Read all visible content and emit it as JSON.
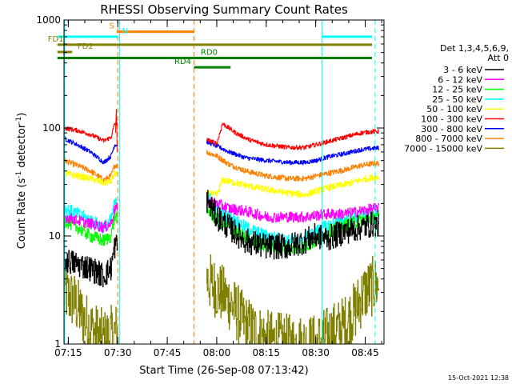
{
  "chart_data": {
    "type": "line",
    "title": "RHESSI Observing Summary Count Rates",
    "xlabel": "Start Time (26-Sep-08 07:13:42)",
    "ylabel_main": "Count Rate (s",
    "ylabel_sup1": "-1",
    "ylabel_mid": " detector",
    "ylabel_sup2": "-1",
    "ylabel_end": ")",
    "yscale": "log",
    "xlim_min": [
      0,
      97
    ],
    "ylim": [
      1,
      1000
    ],
    "x_ticks": [
      {
        "t": 1.3,
        "label": "07:15"
      },
      {
        "t": 16.3,
        "label": "07:30"
      },
      {
        "t": 31.3,
        "label": "07:45"
      },
      {
        "t": 46.3,
        "label": "08:00"
      },
      {
        "t": 61.3,
        "label": "08:15"
      },
      {
        "t": 76.3,
        "label": "08:30"
      },
      {
        "t": 91.3,
        "label": "08:45"
      }
    ],
    "y_ticks": [
      {
        "v": 1,
        "label": "1"
      },
      {
        "v": 10,
        "label": "10"
      },
      {
        "v": 100,
        "label": "100"
      },
      {
        "v": 1000,
        "label": "1000"
      }
    ],
    "legend_header": [
      "Det 1,3,4,5,6,9,",
      "Att 0"
    ],
    "legend_position": "right",
    "series": [
      {
        "name": "3 - 6 keV",
        "color": "#000000",
        "keys": [
          [
            0,
            6
          ],
          [
            4,
            5.5
          ],
          [
            8,
            5
          ],
          [
            12,
            4.3
          ],
          [
            14.2,
            5
          ],
          [
            15.3,
            8
          ],
          [
            43.1,
            22
          ],
          [
            46.3,
            15
          ],
          [
            50,
            12
          ],
          [
            55,
            9
          ],
          [
            61.3,
            8
          ],
          [
            68,
            8
          ],
          [
            73,
            9
          ],
          [
            76.3,
            10
          ],
          [
            80,
            9.5
          ],
          [
            85,
            11
          ],
          [
            90,
            12
          ],
          [
            94,
            13
          ],
          [
            95.5,
            12
          ]
        ],
        "noise": 0.12
      },
      {
        "name": "6 - 12 keV",
        "color": "#ff00ff",
        "keys": [
          [
            0,
            15
          ],
          [
            4,
            14
          ],
          [
            8,
            13
          ],
          [
            12,
            12
          ],
          [
            14.2,
            13
          ],
          [
            15.3,
            18
          ],
          [
            43.1,
            21
          ],
          [
            46.3,
            20
          ],
          [
            50,
            18
          ],
          [
            55,
            17
          ],
          [
            61.3,
            15
          ],
          [
            68,
            15
          ],
          [
            73,
            15
          ],
          [
            76.3,
            15.5
          ],
          [
            80,
            16
          ],
          [
            85,
            16
          ],
          [
            90,
            17
          ],
          [
            94,
            18
          ],
          [
            95.5,
            18
          ]
        ],
        "noise": 0.05
      },
      {
        "name": "12 - 25 keV",
        "color": "#00ff00",
        "keys": [
          [
            0,
            14
          ],
          [
            4,
            12
          ],
          [
            8,
            10
          ],
          [
            12,
            9
          ],
          [
            14.2,
            10
          ],
          [
            15.3,
            15
          ],
          [
            43.1,
            18
          ],
          [
            46.3,
            14
          ],
          [
            50,
            12
          ],
          [
            55,
            9.5
          ],
          [
            61.3,
            8
          ],
          [
            68,
            7.5
          ],
          [
            73,
            8
          ],
          [
            76.3,
            9
          ],
          [
            80,
            11
          ],
          [
            85,
            12.5
          ],
          [
            90,
            14
          ],
          [
            94,
            15
          ],
          [
            95.5,
            15
          ]
        ],
        "noise": 0.06
      },
      {
        "name": "25 - 50 keV",
        "color": "#00ffff",
        "keys": [
          [
            0,
            18
          ],
          [
            4,
            16
          ],
          [
            8,
            14
          ],
          [
            12,
            12
          ],
          [
            14.2,
            14
          ],
          [
            15.3,
            20
          ],
          [
            43.1,
            25
          ],
          [
            46.3,
            17
          ],
          [
            50,
            15
          ],
          [
            55,
            12
          ],
          [
            61.3,
            10
          ],
          [
            68,
            9
          ],
          [
            73,
            9.5
          ],
          [
            76.3,
            11
          ],
          [
            80,
            12.5
          ],
          [
            85,
            14
          ],
          [
            90,
            15.5
          ],
          [
            94,
            16
          ],
          [
            95.5,
            16
          ]
        ],
        "noise": 0.06
      },
      {
        "name": "50 - 100 keV",
        "color": "#ffff00",
        "fill_color": "#d4d400",
        "keys": [
          [
            0,
            38
          ],
          [
            4,
            36
          ],
          [
            8,
            34
          ],
          [
            12,
            31
          ],
          [
            14.2,
            32
          ],
          [
            15.3,
            38
          ],
          [
            43.1,
            25
          ],
          [
            46.3,
            24
          ],
          [
            48,
            33
          ],
          [
            52,
            31
          ],
          [
            56,
            29
          ],
          [
            61.3,
            27
          ],
          [
            68,
            25
          ],
          [
            73,
            24
          ],
          [
            76.3,
            26
          ],
          [
            80,
            28
          ],
          [
            85,
            30
          ],
          [
            90,
            33
          ],
          [
            94,
            35
          ],
          [
            95.5,
            35
          ]
        ],
        "noise": 0.03
      },
      {
        "name": "100 - 300 keV",
        "color": "#ff0000",
        "keys": [
          [
            0,
            100
          ],
          [
            4,
            95
          ],
          [
            8,
            87
          ],
          [
            12,
            76
          ],
          [
            14.2,
            82
          ],
          [
            15.3,
            110
          ],
          [
            43.1,
            78
          ],
          [
            46.3,
            72
          ],
          [
            48,
            110
          ],
          [
            52,
            90
          ],
          [
            56,
            78
          ],
          [
            61.3,
            70
          ],
          [
            68,
            66
          ],
          [
            73,
            66
          ],
          [
            76.3,
            70
          ],
          [
            80,
            75
          ],
          [
            85,
            82
          ],
          [
            90,
            90
          ],
          [
            94,
            93
          ],
          [
            95.5,
            93
          ]
        ],
        "noise": 0.02
      },
      {
        "name": "300 - 800 keV",
        "color": "#0000ff",
        "keys": [
          [
            0,
            80
          ],
          [
            4,
            70
          ],
          [
            8,
            60
          ],
          [
            12,
            48
          ],
          [
            14.2,
            55
          ],
          [
            15.3,
            70
          ],
          [
            43.1,
            75
          ],
          [
            46.3,
            68
          ],
          [
            50,
            60
          ],
          [
            55,
            53
          ],
          [
            61.3,
            50
          ],
          [
            68,
            48
          ],
          [
            73,
            48
          ],
          [
            76.3,
            50
          ],
          [
            80,
            54
          ],
          [
            85,
            58
          ],
          [
            90,
            63
          ],
          [
            94,
            65
          ],
          [
            95.5,
            65
          ]
        ],
        "noise": 0.02
      },
      {
        "name": "800 - 7000 keV",
        "color": "#ff8000",
        "keys": [
          [
            0,
            50
          ],
          [
            4,
            45
          ],
          [
            8,
            40
          ],
          [
            12,
            33
          ],
          [
            14.2,
            36
          ],
          [
            15.3,
            45
          ],
          [
            43.1,
            60
          ],
          [
            46.3,
            55
          ],
          [
            50,
            46
          ],
          [
            55,
            40
          ],
          [
            61.3,
            36
          ],
          [
            68,
            34
          ],
          [
            73,
            34
          ],
          [
            76.3,
            36
          ],
          [
            80,
            38
          ],
          [
            85,
            41
          ],
          [
            90,
            45
          ],
          [
            94,
            47
          ],
          [
            95.5,
            47
          ]
        ],
        "noise": 0.025
      },
      {
        "name": "7000 - 15000 keV",
        "color": "#808000",
        "fill_color": "#808000",
        "keys": [
          [
            0,
            3
          ],
          [
            3,
            2.5
          ],
          [
            6,
            1.7
          ],
          [
            9,
            1.3
          ],
          [
            12,
            1.1
          ],
          [
            14.2,
            1.2
          ],
          [
            43.1,
            4
          ],
          [
            46.3,
            3.2
          ],
          [
            50,
            2.5
          ],
          [
            55,
            1.5
          ],
          [
            61.3,
            1.1
          ],
          [
            68,
            1
          ],
          [
            73,
            1
          ],
          [
            76.3,
            1
          ],
          [
            80,
            1.2
          ],
          [
            85,
            1.5
          ],
          [
            88,
            2
          ],
          [
            91,
            3
          ],
          [
            94,
            3.5
          ],
          [
            95.5,
            3.5
          ]
        ],
        "noise": 0.28
      }
    ],
    "gaps": [
      [
        16.3,
        43.1
      ]
    ],
    "vertical_lines": [
      {
        "t": 0.2,
        "color": "#00ffff",
        "dash": false
      },
      {
        "t": 16.3,
        "color": "#ff8000",
        "dash": true
      },
      {
        "t": 16.9,
        "color": "#00ffff",
        "dash": false
      },
      {
        "t": 39.4,
        "color": "#ff8000",
        "dash": true
      },
      {
        "t": 78.2,
        "color": "#00ffff",
        "dash": false
      },
      {
        "t": 94.3,
        "color": "#00ffff",
        "dash": true
      }
    ],
    "flag_bars": [
      {
        "label": "S",
        "color": "#ff8000",
        "t0": 16.0,
        "t1": 39.4,
        "level": 780,
        "label_t": 14.5
      },
      {
        "label": "N",
        "color": "#00ffff",
        "t0": -2,
        "t1": 16.3,
        "level": 700,
        "label_t": 18.5
      },
      {
        "label": "N",
        "color": "#00ffff",
        "t0": 78.2,
        "t1": 96.5,
        "level": 700,
        "label_t": null
      },
      {
        "label": "FD1",
        "color": "#808000",
        "t0": -2,
        "t1": 96.5,
        "level": 590,
        "label_t": -2.5
      },
      {
        "label": "FD2",
        "color": "#808000",
        "t0": -2,
        "t1": 2.5,
        "level": 505,
        "label_t": 6.5
      },
      {
        "label": "RD0",
        "color": "#008000",
        "t0": -2,
        "t1": 96.5,
        "level": 445,
        "label_t": 44.0
      },
      {
        "label": "RD4",
        "color": "#008000",
        "t0": 39.4,
        "t1": 50.5,
        "level": 365,
        "label_t": 36.0
      }
    ],
    "colors": {
      "frame": "#000000",
      "text": "#000000",
      "background": "#ffffff"
    }
  },
  "footer_timestamp": "15-Oct-2021 12:38"
}
